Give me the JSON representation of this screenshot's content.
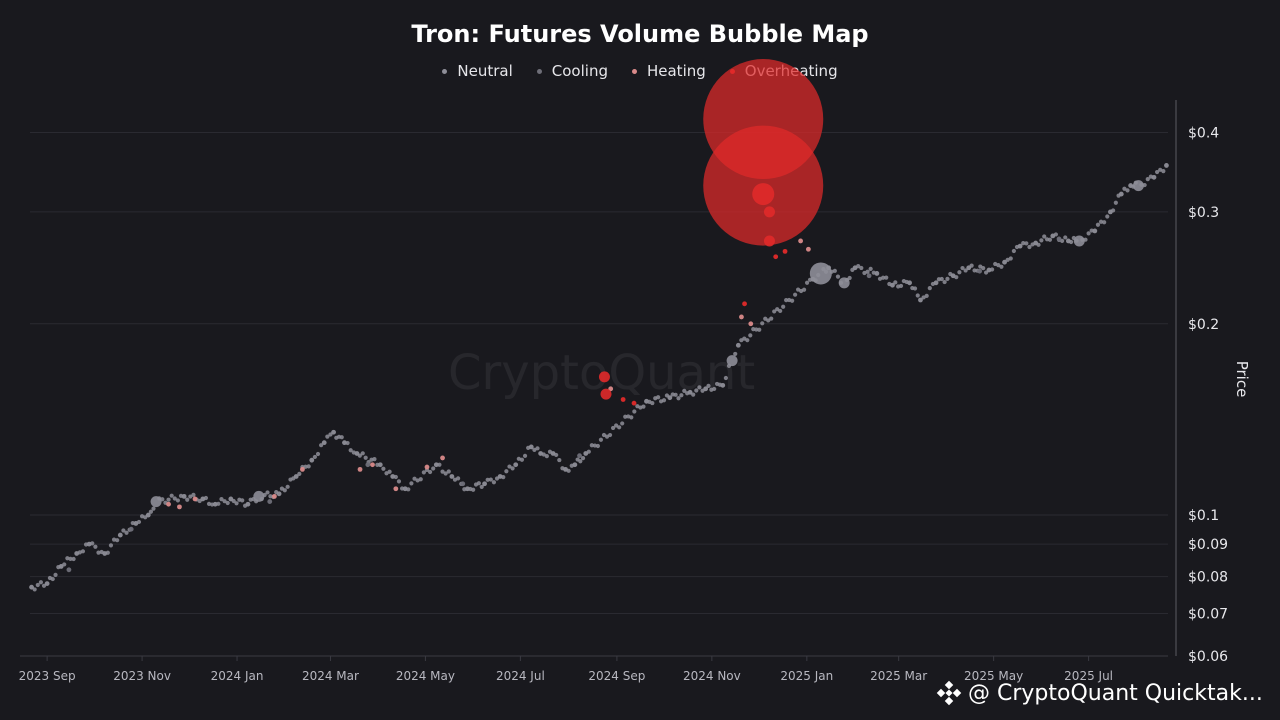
{
  "chart_data": {
    "type": "scatter",
    "title": "Tron: Futures Volume Bubble Map",
    "xlabel": "",
    "ylabel": "Price",
    "y_scale": "log",
    "ylim": [
      0.06,
      0.45
    ],
    "xlim": [
      "2023-08-21",
      "2025-08-21"
    ],
    "x_ticks": [
      "2023 Sep",
      "2023 Nov",
      "2024 Jan",
      "2024 Mar",
      "2024 May",
      "2024 Jul",
      "2024 Sep",
      "2024 Nov",
      "2025 Jan",
      "2025 Mar",
      "2025 May",
      "2025 Jul"
    ],
    "y_ticks": [
      {
        "value": 0.4,
        "label": "$0.4"
      },
      {
        "value": 0.3,
        "label": "$0.3"
      },
      {
        "value": 0.2,
        "label": "$0.2"
      },
      {
        "value": 0.1,
        "label": "$0.1"
      },
      {
        "value": 0.09,
        "label": "$0.09"
      },
      {
        "value": 0.08,
        "label": "$0.08"
      },
      {
        "value": 0.07,
        "label": "$0.07"
      },
      {
        "value": 0.06,
        "label": "$0.06"
      }
    ],
    "legend_position": "top-center",
    "series": [
      {
        "name": "Neutral",
        "color": "#8e8e98",
        "points": [
          [
            "2023-08-22",
            0.077,
            1
          ],
          [
            "2023-09-01",
            0.078,
            1
          ],
          [
            "2023-09-10",
            0.083,
            1
          ],
          [
            "2023-09-20",
            0.087,
            1
          ],
          [
            "2023-09-28",
            0.09,
            1
          ],
          [
            "2023-10-08",
            0.087,
            1
          ],
          [
            "2023-10-18",
            0.093,
            1
          ],
          [
            "2023-10-28",
            0.097,
            1
          ],
          [
            "2023-11-05",
            0.1,
            1
          ],
          [
            "2023-11-10",
            0.105,
            2
          ],
          [
            "2023-11-28",
            0.107,
            1
          ],
          [
            "2023-12-10",
            0.106,
            1
          ],
          [
            "2023-12-18",
            0.104,
            1
          ],
          [
            "2023-12-28",
            0.106,
            1
          ],
          [
            "2024-01-08",
            0.104,
            1
          ],
          [
            "2024-01-15",
            0.107,
            2
          ],
          [
            "2024-01-28",
            0.108,
            1
          ],
          [
            "2024-02-08",
            0.115,
            1
          ],
          [
            "2024-02-18",
            0.122,
            1
          ],
          [
            "2024-02-26",
            0.13,
            1
          ],
          [
            "2024-03-03",
            0.135,
            1
          ],
          [
            "2024-03-10",
            0.13,
            1
          ],
          [
            "2024-03-18",
            0.125,
            1
          ],
          [
            "2024-04-02",
            0.12,
            1
          ],
          [
            "2024-04-10",
            0.115,
            1
          ],
          [
            "2024-04-18",
            0.11,
            1
          ],
          [
            "2024-05-08",
            0.12,
            1
          ],
          [
            "2024-05-18",
            0.115,
            1
          ],
          [
            "2024-05-28",
            0.11,
            1
          ],
          [
            "2024-06-08",
            0.112,
            1
          ],
          [
            "2024-06-18",
            0.115,
            1
          ],
          [
            "2024-06-28",
            0.12,
            1
          ],
          [
            "2024-07-08",
            0.128,
            1
          ],
          [
            "2024-07-14",
            0.125,
            1
          ],
          [
            "2024-07-22",
            0.125,
            1
          ],
          [
            "2024-07-30",
            0.118,
            1
          ],
          [
            "2024-08-05",
            0.12,
            1
          ],
          [
            "2024-08-12",
            0.125,
            1
          ],
          [
            "2024-09-20",
            0.151,
            1
          ],
          [
            "2024-10-05",
            0.153,
            1
          ],
          [
            "2024-10-18",
            0.156,
            1
          ],
          [
            "2024-10-28",
            0.158,
            1
          ],
          [
            "2024-11-08",
            0.16,
            1
          ],
          [
            "2024-11-14",
            0.175,
            2
          ],
          [
            "2024-11-18",
            0.185,
            1
          ],
          [
            "2025-01-05",
            0.235,
            1
          ],
          [
            "2025-01-10",
            0.24,
            3
          ],
          [
            "2025-01-15",
            0.245,
            1
          ],
          [
            "2025-01-25",
            0.232,
            2
          ],
          [
            "2025-02-01",
            0.245,
            1
          ],
          [
            "2025-02-15",
            0.24,
            1
          ],
          [
            "2025-02-25",
            0.23,
            1
          ],
          [
            "2025-03-08",
            0.232,
            1
          ],
          [
            "2025-03-15",
            0.218,
            1
          ],
          [
            "2025-03-25",
            0.232,
            1
          ],
          [
            "2025-04-05",
            0.238,
            1
          ],
          [
            "2025-04-15",
            0.245,
            1
          ],
          [
            "2025-04-28",
            0.243,
            1
          ],
          [
            "2025-05-08",
            0.25,
            1
          ],
          [
            "2025-05-18",
            0.265,
            1
          ],
          [
            "2025-05-28",
            0.268,
            1
          ],
          [
            "2025-06-08",
            0.275,
            1
          ],
          [
            "2025-06-18",
            0.27,
            1
          ],
          [
            "2025-06-25",
            0.27,
            2
          ],
          [
            "2025-07-05",
            0.28,
            1
          ],
          [
            "2025-07-15",
            0.3,
            1
          ],
          [
            "2025-07-22",
            0.32,
            1
          ],
          [
            "2025-07-28",
            0.33,
            1
          ],
          [
            "2025-08-02",
            0.33,
            2
          ],
          [
            "2025-08-12",
            0.34,
            1
          ],
          [
            "2025-08-20",
            0.355,
            1
          ]
        ]
      },
      {
        "name": "Cooling",
        "color": "#6e6e78",
        "points": [
          [
            "2023-09-15",
            0.082,
            1
          ],
          [
            "2023-10-25",
            0.095,
            1
          ],
          [
            "2024-01-22",
            0.105,
            1
          ],
          [
            "2024-03-25",
            0.12,
            1
          ],
          [
            "2024-05-25",
            0.112,
            1
          ],
          [
            "2024-08-08",
            0.124,
            1
          ],
          [
            "2025-02-10",
            0.238,
            1
          ],
          [
            "2025-04-22",
            0.242,
            1
          ],
          [
            "2025-06-12",
            0.272,
            1
          ]
        ]
      },
      {
        "name": "Heating",
        "color": "#d98a8a",
        "points": [
          [
            "2023-11-18",
            0.104,
            1
          ],
          [
            "2023-11-25",
            0.103,
            1
          ],
          [
            "2023-12-05",
            0.106,
            1
          ],
          [
            "2024-01-25",
            0.107,
            1
          ],
          [
            "2024-02-12",
            0.118,
            1
          ],
          [
            "2024-03-20",
            0.118,
            1
          ],
          [
            "2024-03-28",
            0.12,
            1
          ],
          [
            "2024-04-12",
            0.11,
            1
          ],
          [
            "2024-05-02",
            0.119,
            1
          ],
          [
            "2024-05-12",
            0.123,
            1
          ],
          [
            "2024-08-28",
            0.158,
            1
          ],
          [
            "2024-11-20",
            0.205,
            1
          ],
          [
            "2024-11-26",
            0.2,
            1
          ],
          [
            "2024-12-28",
            0.27,
            1
          ],
          [
            "2025-01-02",
            0.262,
            1
          ]
        ]
      },
      {
        "name": "Overheating",
        "color": "#e02a2a",
        "points": [
          [
            "2024-08-24",
            0.165,
            2
          ],
          [
            "2024-08-25",
            0.155,
            2
          ],
          [
            "2024-09-05",
            0.152,
            1
          ],
          [
            "2024-09-12",
            0.15,
            1
          ],
          [
            "2024-11-22",
            0.215,
            1
          ],
          [
            "2024-12-04",
            0.42,
            5
          ],
          [
            "2024-12-04",
            0.33,
            5
          ],
          [
            "2024-12-04",
            0.32,
            3
          ],
          [
            "2024-12-08",
            0.3,
            2
          ],
          [
            "2024-12-08",
            0.27,
            2
          ],
          [
            "2024-12-12",
            0.255,
            1
          ],
          [
            "2024-12-18",
            0.26,
            1
          ]
        ]
      }
    ]
  },
  "watermark": "CryptoQuant",
  "footer": {
    "text": "@ CryptoQuant Quicktak..."
  }
}
